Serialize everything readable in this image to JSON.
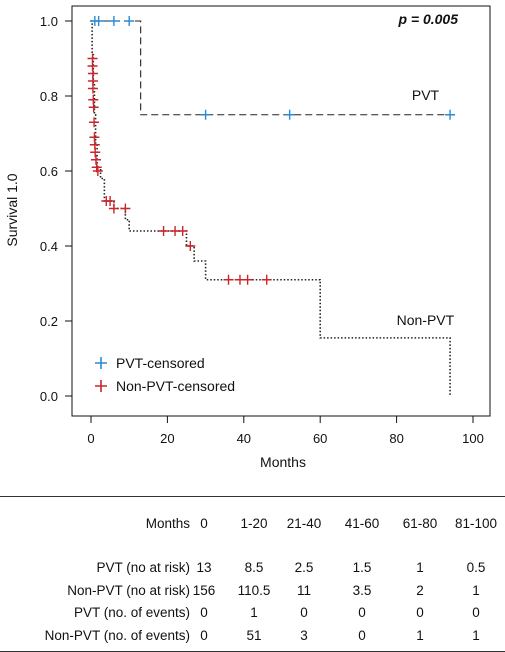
{
  "chart_data": {
    "type": "line",
    "title": "",
    "xlabel": "Months",
    "ylabel": "Survival 1.0",
    "xlim": [
      0,
      100
    ],
    "ylim": [
      0,
      1.0
    ],
    "x_ticks": [
      "0",
      "20",
      "40",
      "60",
      "80",
      "100"
    ],
    "y_ticks": [
      "0.0",
      "0.2",
      "0.4",
      "0.6",
      "0.8",
      "1.0"
    ],
    "annotation": "p =  0.005",
    "grid": false,
    "legend_placement": "bottom-left",
    "series": [
      {
        "name": "PVT",
        "color": "#222222",
        "line_style": "dashed",
        "steps": [
          [
            0,
            1.0
          ],
          [
            13,
            1.0
          ],
          [
            13,
            0.75
          ],
          [
            94,
            0.75
          ]
        ],
        "label_at": [
          84,
          0.79
        ]
      },
      {
        "name": "Non-PVT",
        "color": "#222222",
        "line_style": "dotted",
        "steps": [
          [
            0,
            1.0
          ],
          [
            0.3,
            0.91
          ],
          [
            0.6,
            0.83
          ],
          [
            0.9,
            0.75
          ],
          [
            1.2,
            0.67
          ],
          [
            1.6,
            0.61
          ],
          [
            2.5,
            0.58
          ],
          [
            3.5,
            0.52
          ],
          [
            6,
            0.5
          ],
          [
            9,
            0.47
          ],
          [
            10,
            0.44
          ],
          [
            24,
            0.44
          ],
          [
            25,
            0.4
          ],
          [
            27,
            0.36
          ],
          [
            30,
            0.31
          ],
          [
            60,
            0.31
          ],
          [
            60,
            0.155
          ],
          [
            94,
            0.155
          ],
          [
            94,
            0.0
          ]
        ],
        "label_at": [
          80,
          0.19
        ]
      }
    ],
    "censor_marks": [
      {
        "name": "PVT-censored",
        "color": "#2a8ad4",
        "points": [
          [
            1,
            1.0
          ],
          [
            2,
            1.0
          ],
          [
            6,
            1.0
          ],
          [
            10,
            1.0
          ],
          [
            30,
            0.75
          ],
          [
            52,
            0.75
          ],
          [
            94,
            0.75
          ]
        ]
      },
      {
        "name": "Non-PVT-censored",
        "color": "#c8262b",
        "points": [
          [
            0.4,
            0.9
          ],
          [
            0.4,
            0.88
          ],
          [
            0.5,
            0.86
          ],
          [
            0.5,
            0.84
          ],
          [
            0.5,
            0.82
          ],
          [
            0.6,
            0.79
          ],
          [
            0.7,
            0.77
          ],
          [
            0.8,
            0.73
          ],
          [
            0.9,
            0.69
          ],
          [
            1.0,
            0.67
          ],
          [
            1.1,
            0.65
          ],
          [
            1.3,
            0.63
          ],
          [
            1.5,
            0.61
          ],
          [
            1.8,
            0.6
          ],
          [
            4,
            0.52
          ],
          [
            5,
            0.52
          ],
          [
            6,
            0.5
          ],
          [
            9,
            0.5
          ],
          [
            19,
            0.44
          ],
          [
            22,
            0.44
          ],
          [
            24,
            0.44
          ],
          [
            26,
            0.4
          ],
          [
            36,
            0.31
          ],
          [
            39,
            0.31
          ],
          [
            41,
            0.31
          ],
          [
            46,
            0.31
          ]
        ]
      }
    ]
  },
  "risk_table": {
    "header_label": "Months",
    "columns": [
      "0",
      "1-20",
      "21-40",
      "41-60",
      "61-80",
      "81-100"
    ],
    "rows": [
      {
        "label": "PVT (no at risk)",
        "values": [
          "13",
          "8.5",
          "2.5",
          "1.5",
          "1",
          "0.5"
        ]
      },
      {
        "label": "Non-PVT (no at risk)",
        "values": [
          "156",
          "110.5",
          "11",
          "3.5",
          "2",
          "1"
        ]
      },
      {
        "label": "PVT (no. of events)",
        "values": [
          "0",
          "1",
          "0",
          "0",
          "0",
          "0"
        ]
      },
      {
        "label": "Non-PVT (no. of events)",
        "values": [
          "0",
          "51",
          "3",
          "0",
          "1",
          "1"
        ]
      }
    ]
  }
}
